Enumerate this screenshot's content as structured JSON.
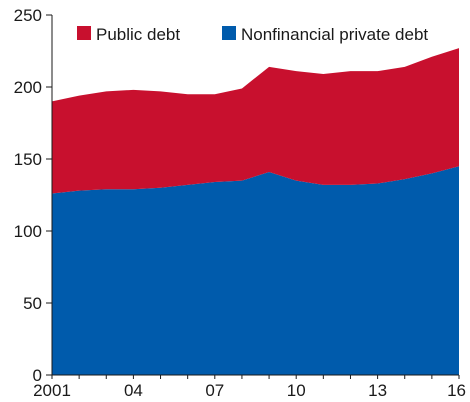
{
  "chart_data": {
    "type": "area",
    "stacked": true,
    "x": [
      2001,
      2002,
      2003,
      2004,
      2005,
      2006,
      2007,
      2008,
      2009,
      2010,
      2011,
      2012,
      2013,
      2014,
      2015,
      2016
    ],
    "xtick_labels": [
      {
        "x": 2001,
        "label": "2001"
      },
      {
        "x": 2004,
        "label": "04"
      },
      {
        "x": 2007,
        "label": "07"
      },
      {
        "x": 2010,
        "label": "10"
      },
      {
        "x": 2013,
        "label": "13"
      },
      {
        "x": 2016,
        "label": "16"
      }
    ],
    "yticks": [
      0,
      50,
      100,
      150,
      200,
      250
    ],
    "ylim": [
      0,
      250
    ],
    "xlim": [
      2001,
      2016
    ],
    "legend_position": "top",
    "series": [
      {
        "name": "Nonfinancial private debt",
        "color": "#005BAC",
        "values": [
          126,
          128,
          129,
          129,
          130,
          132,
          134,
          135,
          141,
          135,
          132,
          132,
          133,
          136,
          140,
          145
        ]
      },
      {
        "name": "Public debt",
        "color": "#C8102E",
        "values": [
          64,
          66,
          68,
          69,
          67,
          63,
          61,
          64,
          73,
          76,
          77,
          79,
          78,
          78,
          81,
          82
        ]
      }
    ],
    "title": "",
    "xlabel": "",
    "ylabel": ""
  },
  "legend": {
    "items": [
      {
        "label": "Public debt",
        "color": "#C8102E"
      },
      {
        "label": "Nonfinancial private debt",
        "color": "#005BAC"
      }
    ]
  }
}
